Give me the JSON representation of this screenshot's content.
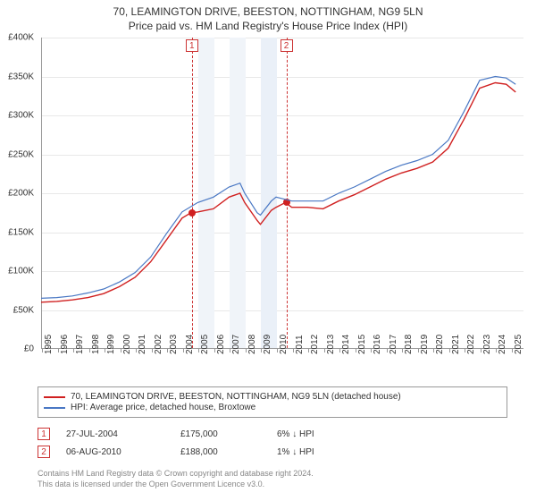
{
  "title": "70, LEAMINGTON DRIVE, BEESTON, NOTTINGHAM, NG9 5LN",
  "subtitle": "Price paid vs. HM Land Registry's House Price Index (HPI)",
  "chart": {
    "type": "line",
    "xlim": [
      1995,
      2025.8
    ],
    "ylim": [
      0,
      400000
    ],
    "ytick_step": 50000,
    "yticks": [
      "£0",
      "£50K",
      "£100K",
      "£150K",
      "£200K",
      "£250K",
      "£300K",
      "£350K",
      "£400K"
    ],
    "xticks": [
      1995,
      1996,
      1997,
      1998,
      1999,
      2000,
      2001,
      2002,
      2003,
      2004,
      2005,
      2006,
      2007,
      2008,
      2009,
      2010,
      2011,
      2012,
      2013,
      2014,
      2015,
      2016,
      2017,
      2018,
      2019,
      2020,
      2021,
      2022,
      2023,
      2024,
      2025
    ],
    "grid_color": "#e8e8e8",
    "background_bands": [
      {
        "from": 2005,
        "to": 2006,
        "color": "#f0f4f9"
      },
      {
        "from": 2007,
        "to": 2008,
        "color": "#f0f4f9"
      },
      {
        "from": 2009,
        "to": 2010,
        "color": "#eaf0f8"
      }
    ],
    "markers": [
      {
        "n": "1",
        "x": 2004.57
      },
      {
        "n": "2",
        "x": 2010.6
      }
    ],
    "series": [
      {
        "name": "property",
        "color": "#d02020",
        "width": 1.4,
        "label": "70, LEAMINGTON DRIVE, BEESTON, NOTTINGHAM, NG9 5LN (detached house)",
        "data": [
          [
            1995,
            60000
          ],
          [
            1996,
            61000
          ],
          [
            1997,
            63000
          ],
          [
            1998,
            66000
          ],
          [
            1999,
            71000
          ],
          [
            2000,
            80000
          ],
          [
            2001,
            92000
          ],
          [
            2002,
            112000
          ],
          [
            2003,
            140000
          ],
          [
            2004,
            168000
          ],
          [
            2004.57,
            175000
          ],
          [
            2005,
            176000
          ],
          [
            2006,
            180000
          ],
          [
            2007,
            195000
          ],
          [
            2007.7,
            200000
          ],
          [
            2008,
            188000
          ],
          [
            2008.8,
            165000
          ],
          [
            2009,
            160000
          ],
          [
            2009.7,
            178000
          ],
          [
            2010,
            182000
          ],
          [
            2010.6,
            188000
          ],
          [
            2011,
            182000
          ],
          [
            2012,
            182000
          ],
          [
            2013,
            180000
          ],
          [
            2014,
            190000
          ],
          [
            2015,
            198000
          ],
          [
            2016,
            208000
          ],
          [
            2017,
            218000
          ],
          [
            2018,
            226000
          ],
          [
            2019,
            232000
          ],
          [
            2020,
            240000
          ],
          [
            2021,
            258000
          ],
          [
            2022,
            295000
          ],
          [
            2023,
            335000
          ],
          [
            2024,
            342000
          ],
          [
            2024.7,
            340000
          ],
          [
            2025.3,
            330000
          ]
        ]
      },
      {
        "name": "hpi",
        "color": "#4a78c4",
        "width": 1.2,
        "label": "HPI: Average price, detached house, Broxtowe",
        "data": [
          [
            1995,
            65000
          ],
          [
            1996,
            66000
          ],
          [
            1997,
            68000
          ],
          [
            1998,
            72000
          ],
          [
            1999,
            77000
          ],
          [
            2000,
            86000
          ],
          [
            2001,
            98000
          ],
          [
            2002,
            118000
          ],
          [
            2003,
            148000
          ],
          [
            2004,
            176000
          ],
          [
            2005,
            188000
          ],
          [
            2006,
            195000
          ],
          [
            2007,
            208000
          ],
          [
            2007.7,
            213000
          ],
          [
            2008,
            200000
          ],
          [
            2008.8,
            175000
          ],
          [
            2009,
            172000
          ],
          [
            2009.7,
            190000
          ],
          [
            2010,
            195000
          ],
          [
            2011,
            190000
          ],
          [
            2012,
            190000
          ],
          [
            2013,
            190000
          ],
          [
            2014,
            200000
          ],
          [
            2015,
            208000
          ],
          [
            2016,
            218000
          ],
          [
            2017,
            228000
          ],
          [
            2018,
            236000
          ],
          [
            2019,
            242000
          ],
          [
            2020,
            250000
          ],
          [
            2021,
            268000
          ],
          [
            2022,
            305000
          ],
          [
            2023,
            345000
          ],
          [
            2024,
            350000
          ],
          [
            2024.7,
            348000
          ],
          [
            2025.3,
            340000
          ]
        ]
      }
    ],
    "sale_points": [
      {
        "x": 2004.57,
        "y": 175000,
        "color": "#d02020"
      },
      {
        "x": 2010.6,
        "y": 188000,
        "color": "#d02020"
      }
    ]
  },
  "sales": [
    {
      "n": "1",
      "date": "27-JUL-2004",
      "price": "£175,000",
      "delta": "6% ↓ HPI"
    },
    {
      "n": "2",
      "date": "06-AUG-2010",
      "price": "£188,000",
      "delta": "1% ↓ HPI"
    }
  ],
  "footer1": "Contains HM Land Registry data © Crown copyright and database right 2024.",
  "footer2": "This data is licensed under the Open Government Licence v3.0."
}
